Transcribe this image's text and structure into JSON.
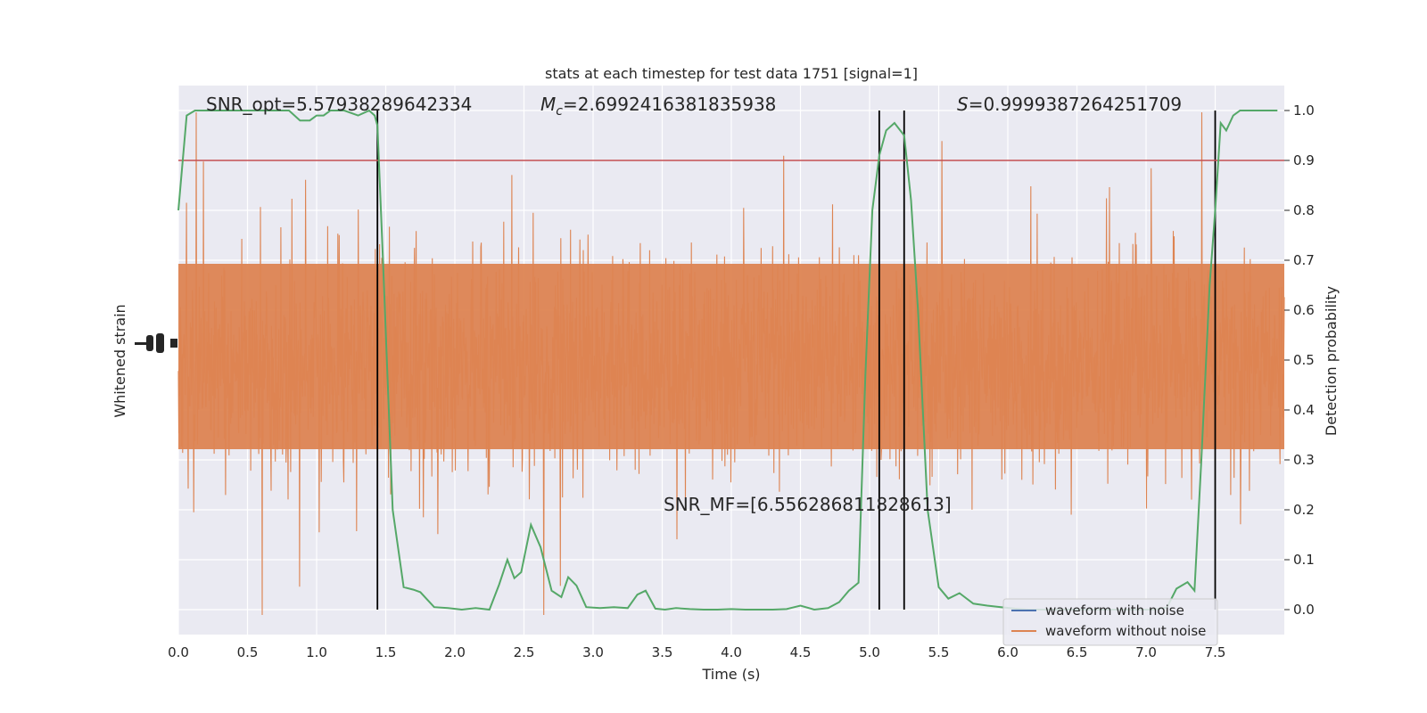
{
  "chart_data": {
    "type": "line",
    "title": "stats at each timestep for test data 1751 [signal=1]",
    "xlabel": "Time (s)",
    "ylabel_left": "Whitened strain",
    "ylabel_right": "Detection probability",
    "xlim": [
      0,
      8
    ],
    "ylim_right": [
      -0.05,
      1.05
    ],
    "x_ticks": [
      "0.0",
      "0.5",
      "1.0",
      "1.5",
      "2.0",
      "2.5",
      "3.0",
      "3.5",
      "4.0",
      "4.5",
      "5.0",
      "5.5",
      "6.0",
      "6.5",
      "7.0",
      "7.5"
    ],
    "y_ticks_right": [
      "0.0",
      "0.1",
      "0.2",
      "0.3",
      "0.4",
      "0.5",
      "0.6",
      "0.7",
      "0.8",
      "0.9",
      "1.0"
    ],
    "grid": true,
    "legend_position": "lower-right",
    "annotations": {
      "snr_opt": "SNR_opt=5.57938289642334",
      "mc_symbol": "M",
      "mc_sub": "c",
      "mc_value": "=2.6992416381835938",
      "s_symbol": "S",
      "s_value": "=0.9999387264251709",
      "snr_mf": "SNR_MF=[6.556286811828613]"
    },
    "threshold": {
      "y": 0.9,
      "color": "#c44e52"
    },
    "vertical_markers": [
      1.44,
      5.07,
      5.25,
      7.5
    ],
    "series": [
      {
        "name": "waveform with noise",
        "color": "#4c72b0"
      },
      {
        "name": "waveform without noise",
        "color": "#dd8452"
      }
    ],
    "probability": {
      "color": "#55a868",
      "x": [
        0.0,
        0.06,
        0.12,
        0.2,
        0.3,
        0.4,
        0.5,
        0.6,
        0.7,
        0.8,
        0.88,
        0.95,
        1.0,
        1.05,
        1.1,
        1.2,
        1.3,
        1.38,
        1.42,
        1.44,
        1.48,
        1.55,
        1.63,
        1.7,
        1.75,
        1.85,
        1.95,
        2.05,
        2.15,
        2.25,
        2.32,
        2.38,
        2.43,
        2.48,
        2.55,
        2.62,
        2.7,
        2.77,
        2.82,
        2.88,
        2.95,
        3.05,
        3.15,
        3.25,
        3.32,
        3.38,
        3.45,
        3.52,
        3.6,
        3.7,
        3.8,
        3.9,
        4.0,
        4.1,
        4.2,
        4.3,
        4.4,
        4.5,
        4.6,
        4.7,
        4.78,
        4.85,
        4.92,
        4.97,
        5.02,
        5.07,
        5.12,
        5.18,
        5.25,
        5.3,
        5.35,
        5.42,
        5.5,
        5.57,
        5.65,
        5.75,
        5.85,
        5.95,
        6.05,
        6.15,
        6.3,
        6.45,
        6.6,
        6.75,
        6.9,
        7.05,
        7.15,
        7.22,
        7.3,
        7.35,
        7.4,
        7.46,
        7.5,
        7.54,
        7.58,
        7.63,
        7.68,
        7.75,
        7.85,
        7.95
      ],
      "y": [
        0.8,
        0.99,
        1.0,
        1.0,
        1.0,
        1.0,
        1.0,
        1.0,
        1.0,
        1.0,
        0.98,
        0.98,
        0.99,
        0.99,
        1.0,
        1.0,
        0.99,
        1.0,
        0.99,
        0.97,
        0.7,
        0.2,
        0.045,
        0.04,
        0.035,
        0.005,
        0.003,
        0.0,
        0.003,
        0.0,
        0.05,
        0.1,
        0.063,
        0.075,
        0.17,
        0.125,
        0.038,
        0.025,
        0.065,
        0.048,
        0.005,
        0.003,
        0.005,
        0.003,
        0.03,
        0.038,
        0.002,
        0.0,
        0.003,
        0.001,
        0.0,
        0.0,
        0.001,
        0.0,
        0.0,
        0.0,
        0.001,
        0.008,
        0.0,
        0.003,
        0.015,
        0.038,
        0.054,
        0.47,
        0.8,
        0.91,
        0.96,
        0.975,
        0.95,
        0.82,
        0.6,
        0.2,
        0.045,
        0.022,
        0.033,
        0.012,
        0.008,
        0.005,
        0.002,
        0.0,
        0.0,
        0.0,
        0.0,
        0.0,
        0.0,
        0.0,
        0.004,
        0.042,
        0.055,
        0.038,
        0.3,
        0.65,
        0.8,
        0.975,
        0.96,
        0.99,
        1.0,
        1.0,
        1.0,
        1.0
      ]
    }
  }
}
